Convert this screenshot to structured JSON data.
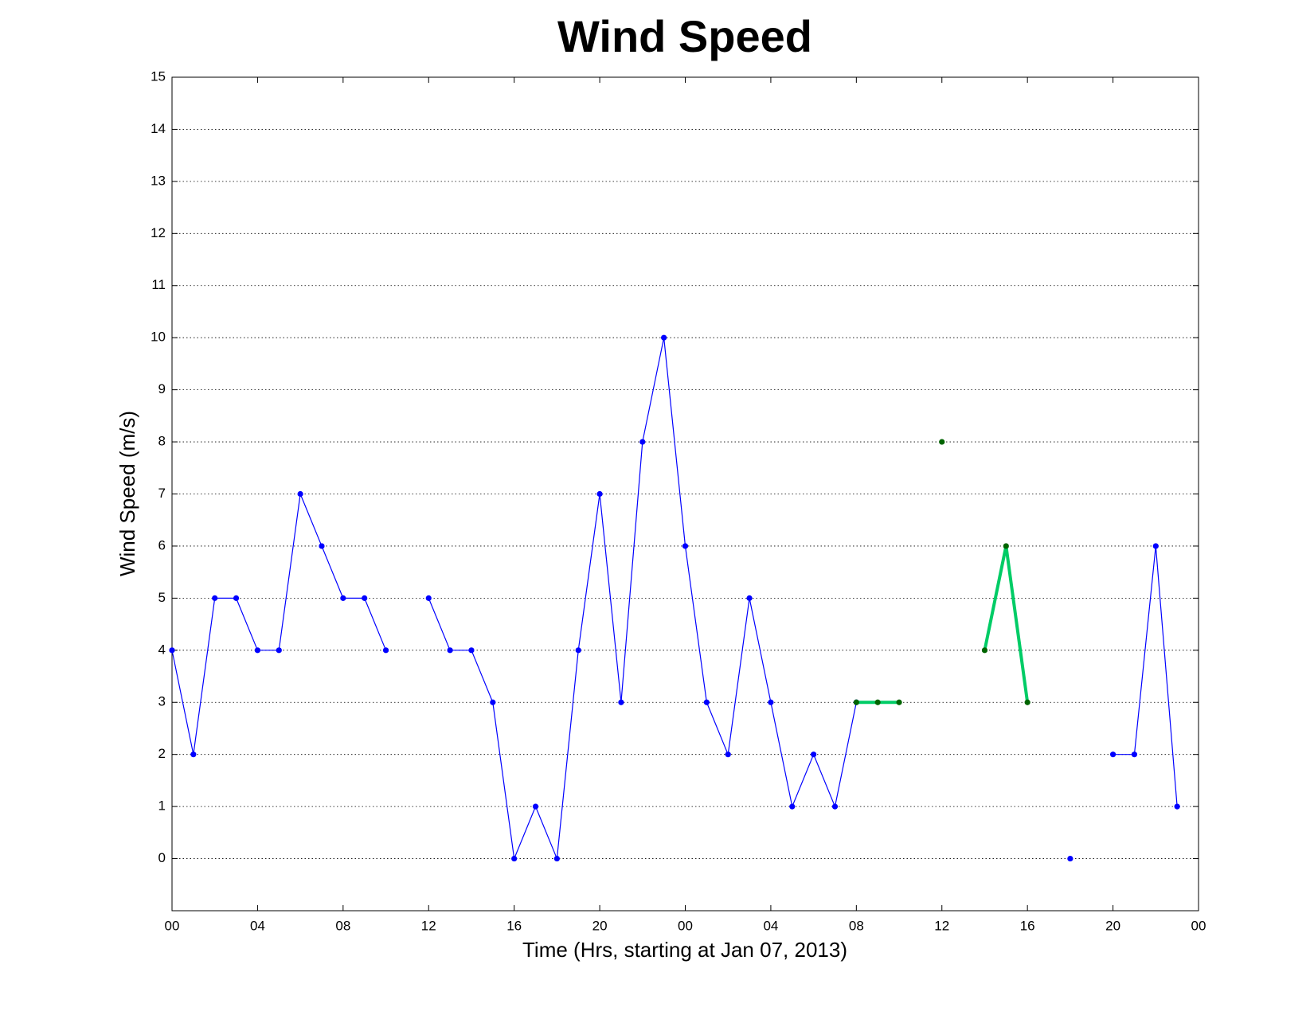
{
  "chart_data": {
    "type": "line",
    "title": "Wind Speed",
    "x_label": "Time (Hrs, starting at Jan 07, 2013)",
    "y_label": "Wind Speed (m/s)",
    "xlim": [
      0,
      48
    ],
    "ylim": [
      -1,
      15
    ],
    "xticks": [
      {
        "value": 0,
        "label": "00"
      },
      {
        "value": 4,
        "label": "04"
      },
      {
        "value": 8,
        "label": "08"
      },
      {
        "value": 12,
        "label": "12"
      },
      {
        "value": 16,
        "label": "16"
      },
      {
        "value": 20,
        "label": "20"
      },
      {
        "value": 24,
        "label": "00"
      },
      {
        "value": 28,
        "label": "04"
      },
      {
        "value": 32,
        "label": "08"
      },
      {
        "value": 36,
        "label": "12"
      },
      {
        "value": 40,
        "label": "16"
      },
      {
        "value": 44,
        "label": "20"
      },
      {
        "value": 48,
        "label": "00"
      }
    ],
    "yticks": [
      0,
      1,
      2,
      3,
      4,
      5,
      6,
      7,
      8,
      9,
      10,
      11,
      12,
      13,
      14,
      15
    ],
    "grid": true,
    "series": [
      {
        "color": "#0000ff",
        "marker_color": "#0000ff",
        "width": 1.2,
        "x": [
          0,
          1,
          2,
          3,
          4,
          5,
          6,
          7,
          8,
          9,
          10,
          11,
          12,
          13,
          14,
          15,
          16,
          17,
          18,
          19,
          20,
          21,
          22,
          23,
          24,
          25,
          26,
          27,
          28,
          29,
          30,
          31,
          32,
          33,
          34,
          35,
          36,
          37,
          38,
          39,
          40,
          41,
          42,
          43,
          44,
          45,
          46,
          47
        ],
        "values": [
          4,
          2,
          5,
          5,
          4,
          4,
          7,
          6,
          5,
          5,
          4,
          null,
          5,
          4,
          4,
          3,
          0,
          1,
          0,
          4,
          7,
          3,
          8,
          10,
          6,
          3,
          2,
          5,
          3,
          1,
          2,
          1,
          3,
          null,
          null,
          null,
          null,
          null,
          null,
          null,
          null,
          null,
          0,
          null,
          2,
          2,
          6,
          1
        ]
      },
      {
        "color": "#00cc66",
        "marker_color": "#006400",
        "width": 4,
        "x": [
          32,
          33,
          34,
          35,
          36,
          37,
          38,
          39,
          40
        ],
        "values": [
          3,
          3,
          3,
          null,
          8,
          null,
          4,
          6,
          3
        ]
      }
    ]
  }
}
